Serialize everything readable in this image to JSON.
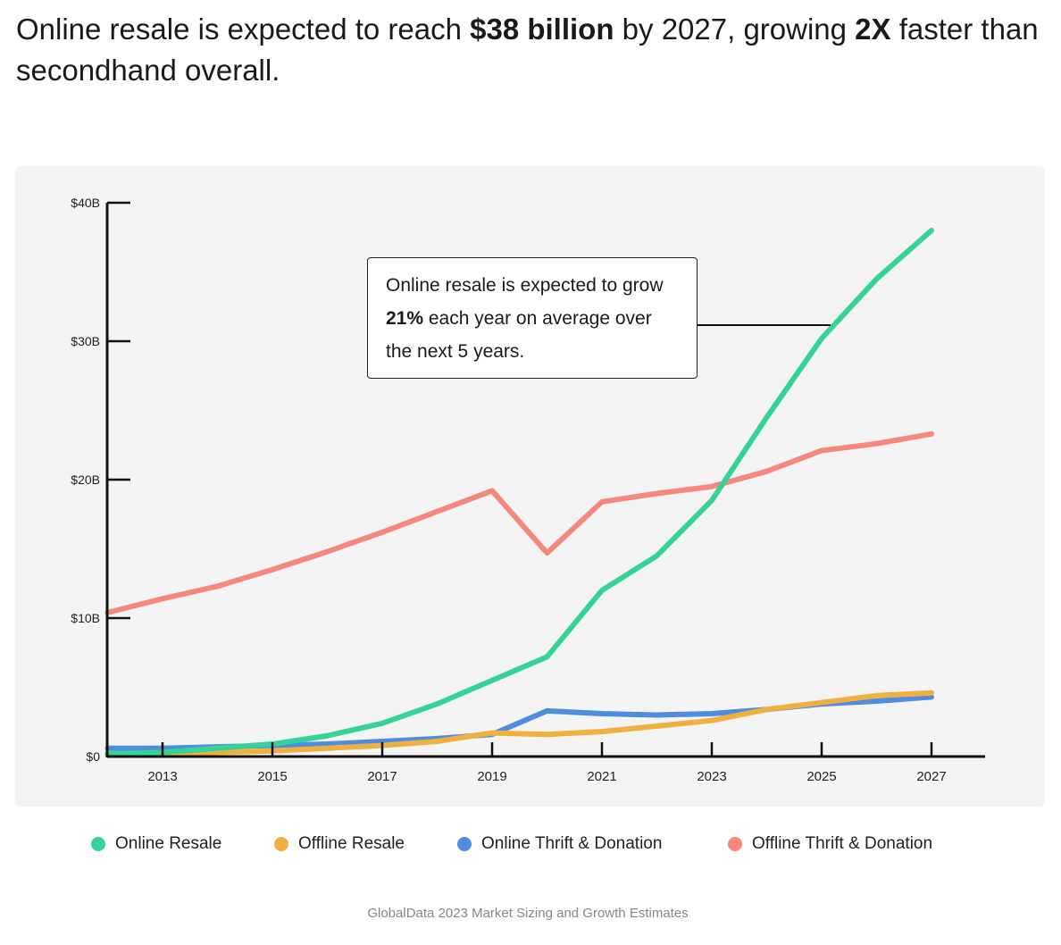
{
  "headline": {
    "pre": "Online resale is expected to reach ",
    "bold1": "$38 billion",
    "mid": " by 2027, growing ",
    "bold2": "2X",
    "post": " faster than secondhand overall."
  },
  "annotation": {
    "pre": "Online resale is expected to grow ",
    "bold": "21%",
    "post": " each year on average over the next 5 years."
  },
  "source": "GlobalData 2023 Market Sizing and Growth Estimates",
  "chart_data": {
    "type": "line",
    "x": [
      2012,
      2013,
      2014,
      2015,
      2016,
      2017,
      2018,
      2019,
      2020,
      2021,
      2022,
      2023,
      2024,
      2025,
      2026,
      2027
    ],
    "xticks": [
      "2013",
      "2015",
      "2017",
      "2019",
      "2021",
      "2023",
      "2025",
      "2027"
    ],
    "yticks": [
      "$0",
      "$10B",
      "$20B",
      "$30B",
      "$40B"
    ],
    "ylim": [
      0,
      40
    ],
    "ylabel": "",
    "xlabel": "",
    "legend": "bottom",
    "series": [
      {
        "name": "Online Resale",
        "color": "#36d399",
        "values": [
          0.2,
          0.3,
          0.6,
          0.9,
          1.5,
          2.4,
          3.8,
          5.5,
          7.2,
          12.0,
          14.5,
          18.5,
          24.5,
          30.2,
          34.5,
          38.0
        ]
      },
      {
        "name": "Offline Resale",
        "color": "#f0b03f",
        "values": [
          0.1,
          0.1,
          0.3,
          0.4,
          0.6,
          0.8,
          1.1,
          1.7,
          1.6,
          1.8,
          2.2,
          2.6,
          3.4,
          3.9,
          4.4,
          4.6
        ]
      },
      {
        "name": "Online Thrift & Donation",
        "color": "#4f8de0",
        "values": [
          0.6,
          0.6,
          0.7,
          0.8,
          0.9,
          1.1,
          1.3,
          1.6,
          3.3,
          3.1,
          3.0,
          3.1,
          3.4,
          3.8,
          4.0,
          4.3
        ]
      },
      {
        "name": "Offline Thrift & Donation",
        "color": "#f7877b",
        "values": [
          10.4,
          11.4,
          12.3,
          13.5,
          14.8,
          16.2,
          17.7,
          19.2,
          14.7,
          18.4,
          19.0,
          19.5,
          20.6,
          22.1,
          22.6,
          23.3
        ]
      }
    ]
  }
}
